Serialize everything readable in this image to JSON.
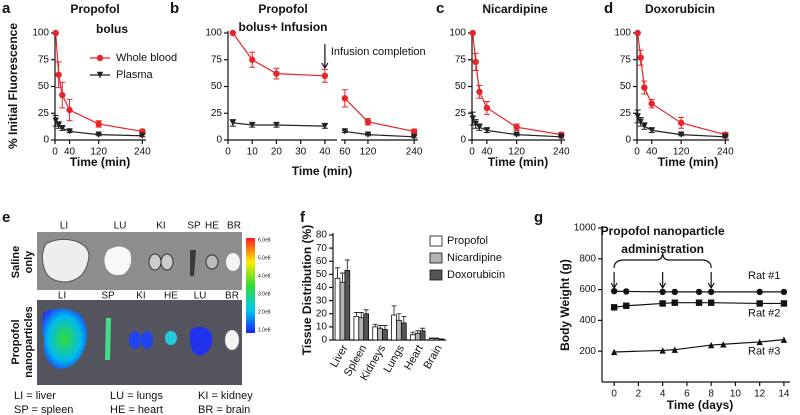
{
  "panel_labels": [
    "a",
    "b",
    "c",
    "d",
    "e",
    "f",
    "g"
  ],
  "image_panel": {
    "row_labels": [
      [
        "Saline",
        "only"
      ],
      [
        "Propofol",
        "nanoparticles"
      ]
    ],
    "top_organs": [
      "LI",
      "LU",
      "KI",
      "SP",
      "HE",
      "BR"
    ],
    "bottom_organs": [
      "LI",
      "SP",
      "KI",
      "HE",
      "LU",
      "BR"
    ],
    "colorbar_ticks": [
      "6.0e8",
      "5.0e8",
      "4.0e8",
      "3.0e8",
      "2.0e8",
      "1.0e8"
    ],
    "key": [
      "LI = liver",
      "LU = lungs",
      "KI = kidney",
      "SP = spleen",
      "HE = heart",
      "BR = brain"
    ]
  },
  "chart_data": [
    {
      "type": "line",
      "title": "Propofol",
      "subtitle": "bolus",
      "x_label": "Time (min)",
      "y_label": "% Initial Fluorescence",
      "x": [
        2,
        10,
        20,
        40,
        120,
        240
      ],
      "xlim": [
        0,
        250
      ],
      "xticks": [
        0,
        40,
        120,
        240
      ],
      "ylim": [
        0,
        100
      ],
      "yticks": [
        0,
        25,
        50,
        75,
        100
      ],
      "legend": "upper right",
      "series": [
        {
          "name": "Whole blood",
          "color": "#e8262a",
          "marker": "circle",
          "values": [
            100,
            61,
            42,
            28,
            15,
            8
          ],
          "errors": [
            0,
            12,
            12,
            10,
            3,
            2
          ]
        },
        {
          "name": "Plasma",
          "color": "#222222",
          "marker": "triangle-down",
          "values": [
            18,
            14,
            11,
            8,
            5,
            4
          ],
          "errors": [
            5,
            3,
            2,
            1,
            1,
            1
          ]
        }
      ]
    },
    {
      "type": "line",
      "title": "Propofol",
      "subtitle": "bolus+ Infusion",
      "x_label": "Time (min)",
      "x": [
        2,
        10,
        20,
        40,
        60,
        120,
        240
      ],
      "xlim": [
        0,
        250
      ],
      "xbreak": [
        45,
        50
      ],
      "xticks": [
        0,
        10,
        20,
        30,
        40,
        60,
        120,
        240
      ],
      "ylim": [
        0,
        100
      ],
      "yticks": [
        0,
        25,
        50,
        75,
        100
      ],
      "annotation": {
        "text": "Infusion completion",
        "x": 40
      },
      "series": [
        {
          "color": "#e8262a",
          "marker": "circle",
          "values": [
            100,
            75,
            62,
            60,
            39,
            17,
            8
          ],
          "errors": [
            0,
            7,
            5,
            6,
            8,
            3,
            2
          ]
        },
        {
          "color": "#222222",
          "marker": "triangle-down",
          "values": [
            16,
            14,
            14,
            13,
            8,
            5,
            3
          ],
          "errors": [
            3,
            2,
            2,
            2,
            1,
            1,
            1
          ]
        }
      ]
    },
    {
      "type": "line",
      "title": "Nicardipine",
      "x_label": "Time (min)",
      "x": [
        2,
        10,
        20,
        40,
        120,
        240
      ],
      "xlim": [
        0,
        250
      ],
      "xticks": [
        0,
        40,
        120,
        240
      ],
      "ylim": [
        0,
        100
      ],
      "yticks": [
        0,
        25,
        50,
        75,
        100
      ],
      "series": [
        {
          "color": "#e8262a",
          "marker": "circle",
          "values": [
            100,
            73,
            45,
            30,
            12,
            5
          ],
          "errors": [
            0,
            8,
            6,
            6,
            3,
            2
          ]
        },
        {
          "color": "#222222",
          "marker": "triangle-down",
          "values": [
            20,
            15,
            12,
            9,
            5,
            3
          ],
          "errors": [
            6,
            4,
            3,
            2,
            1,
            1
          ]
        }
      ]
    },
    {
      "type": "line",
      "title": "Doxorubicin",
      "x_label": "Time (min)",
      "x": [
        2,
        10,
        20,
        40,
        120,
        240
      ],
      "xlim": [
        0,
        250
      ],
      "xticks": [
        0,
        40,
        120,
        240
      ],
      "ylim": [
        0,
        100
      ],
      "yticks": [
        0,
        25,
        50,
        75,
        100
      ],
      "series": [
        {
          "color": "#e8262a",
          "marker": "circle",
          "values": [
            100,
            77,
            49,
            34,
            16,
            5
          ],
          "errors": [
            0,
            7,
            6,
            4,
            5,
            2
          ]
        },
        {
          "color": "#222222",
          "marker": "triangle-down",
          "values": [
            22,
            17,
            13,
            9,
            5,
            3
          ],
          "errors": [
            6,
            4,
            3,
            2,
            1,
            1
          ]
        }
      ]
    },
    {
      "type": "bar",
      "y_label": "Tissue Distribution (%)",
      "categories": [
        "Liver",
        "Spleen",
        "Kidneys",
        "Lungs",
        "Heart",
        "Brain"
      ],
      "ylim": [
        0,
        80
      ],
      "yticks": [
        0,
        10,
        20,
        30,
        40,
        50,
        60,
        70,
        80
      ],
      "legend": "upper right",
      "series": [
        {
          "name": "Propofol",
          "color": "#ffffff",
          "values": [
            47,
            18,
            10,
            19,
            4,
            1
          ],
          "errors": [
            8,
            3,
            2,
            7,
            2,
            0.5
          ]
        },
        {
          "name": "Nicardipine",
          "color": "#b3b3b3",
          "values": [
            44,
            17,
            9,
            15,
            5,
            1
          ],
          "errors": [
            7,
            4,
            2,
            5,
            2,
            0.5
          ]
        },
        {
          "name": "Doxorubicin",
          "color": "#555555",
          "values": [
            53,
            20,
            8,
            13,
            7,
            0.5
          ],
          "errors": [
            8,
            3,
            3,
            5,
            2,
            0.3
          ]
        }
      ]
    },
    {
      "type": "line",
      "x_label": "Time (days)",
      "y_label": "Body Weight (g)",
      "xlim": [
        -1,
        14.5
      ],
      "xticks": [
        0,
        2,
        4,
        6,
        8,
        10,
        12,
        14
      ],
      "ylim": [
        0,
        1000
      ],
      "yticks": [
        200,
        400,
        600,
        800,
        1000
      ],
      "annotation": {
        "text": [
          "Propofol nanoparticle",
          "administration"
        ],
        "x": [
          0,
          4,
          8
        ]
      },
      "series": [
        {
          "name": "Rat #1",
          "color": "#111111",
          "marker": "circle",
          "x": [
            0,
            1,
            4,
            5,
            7,
            8,
            12,
            14
          ],
          "values": [
            590,
            588,
            585,
            585,
            585,
            585,
            585,
            585
          ]
        },
        {
          "name": "Rat #2",
          "color": "#111111",
          "marker": "square",
          "x": [
            0,
            1,
            4,
            5,
            7,
            8,
            12,
            14
          ],
          "values": [
            485,
            495,
            510,
            515,
            515,
            515,
            510,
            510
          ]
        },
        {
          "name": "Rat #3",
          "color": "#111111",
          "marker": "triangle-up",
          "x": [
            0,
            4,
            5,
            8,
            9,
            12,
            14
          ],
          "values": [
            195,
            205,
            210,
            240,
            245,
            260,
            275
          ]
        }
      ]
    }
  ]
}
